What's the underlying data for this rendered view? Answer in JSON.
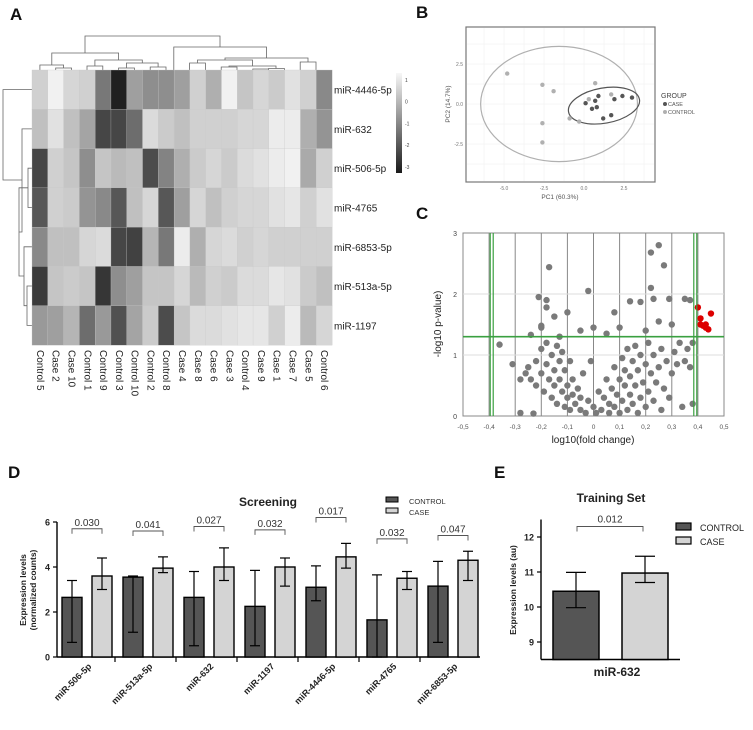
{
  "panels": {
    "a": "A",
    "b": "B",
    "c": "C",
    "d": "D",
    "e": "E"
  },
  "chart_data": [
    {
      "type": "heatmap",
      "rows": [
        "miR-4446-5p",
        "miR-632",
        "miR-506-5p",
        "miR-4765",
        "miR-6853-5p",
        "miR-513a-5p",
        "miR-1197"
      ],
      "columns": [
        "Control 5",
        "Case 2",
        "Case 10",
        "Control 1",
        "Control 9",
        "Control 3",
        "Control 10",
        "Control 2",
        "Control 8",
        "Case 4",
        "Case 8",
        "Case 6",
        "Case 3",
        "Control 4",
        "Case 9",
        "Case 1",
        "Case 7",
        "Case 5",
        "Control 6"
      ],
      "values": [
        [
          0.3,
          0.9,
          0.4,
          0.3,
          -1.3,
          -2.9,
          -0.6,
          -0.9,
          -0.9,
          -0.6,
          0.3,
          -0.3,
          0.9,
          0.1,
          0.4,
          0.2,
          0.6,
          0.3,
          -1.0
        ],
        [
          0.0,
          0.6,
          0.0,
          -0.5,
          -2.2,
          -2.2,
          -1.5,
          0.5,
          0.2,
          0.0,
          0.3,
          0.3,
          0.3,
          0.4,
          0.4,
          0.8,
          0.8,
          -0.3,
          -0.8
        ],
        [
          -2.2,
          0.3,
          0.1,
          -0.9,
          0.1,
          -0.1,
          0.0,
          -2.1,
          -1.1,
          -0.3,
          0.2,
          0.4,
          0.2,
          0.5,
          0.6,
          0.8,
          0.9,
          -0.4,
          0.3
        ],
        [
          -1.9,
          0.3,
          0.2,
          -0.8,
          -1.0,
          -1.9,
          0.0,
          0.4,
          -1.9,
          -0.6,
          0.4,
          0.0,
          0.3,
          0.4,
          0.4,
          0.6,
          0.7,
          0.3,
          0.6
        ],
        [
          -1.0,
          0.0,
          0.0,
          0.4,
          0.5,
          -2.2,
          -2.3,
          -0.2,
          -1.3,
          0.8,
          -0.3,
          0.4,
          0.5,
          0.3,
          0.4,
          0.3,
          0.3,
          0.3,
          0.3
        ],
        [
          -2.4,
          0.1,
          0.2,
          0.1,
          -2.5,
          -0.9,
          -0.6,
          0.1,
          0.1,
          0.4,
          -0.1,
          0.3,
          0.2,
          0.5,
          0.5,
          0.7,
          0.6,
          0.2,
          0.0
        ],
        [
          -0.7,
          -0.6,
          -0.2,
          -1.5,
          -0.7,
          -2.0,
          -0.5,
          0.2,
          -2.1,
          0.1,
          0.5,
          0.5,
          0.6,
          0.7,
          0.7,
          0.3,
          0.8,
          -0.1,
          0.4
        ]
      ],
      "colorbar": {
        "ticks": [
          "1",
          "0",
          "-1",
          "-2",
          "-3"
        ],
        "range": [
          -3,
          1
        ],
        "low_color": "#1a1a1a",
        "high_color": "#f7f7f7"
      }
    },
    {
      "type": "scatter",
      "xlabel": "PC1 (60.3%)",
      "ylabel": "PC2 (14.7%)",
      "xticks": [
        "-5.0",
        "-2.5",
        "0.0",
        "2.5"
      ],
      "xtick_values": [
        -5,
        -2.5,
        0,
        2.5
      ],
      "yticks": [
        "2.5",
        "0.0",
        "-2.5"
      ],
      "ytick_values": [
        2.5,
        0,
        -2.5
      ],
      "legend": {
        "title": "GROUP",
        "items": [
          "CASE",
          "CONTROL"
        ],
        "placement": "right"
      },
      "series": [
        {
          "name": "CASE",
          "color": "#555555",
          "points": [
            [
              0.1,
              0.05
            ],
            [
              0.5,
              -0.3
            ],
            [
              0.7,
              0.2
            ],
            [
              0.8,
              -0.2
            ],
            [
              0.9,
              0.5
            ],
            [
              1.2,
              -0.9
            ],
            [
              1.7,
              -0.7
            ],
            [
              1.9,
              0.3
            ],
            [
              2.4,
              0.5
            ],
            [
              3.0,
              0.4
            ]
          ]
        },
        {
          "name": "CONTROL",
          "color": "#b0b0b0",
          "points": [
            [
              -4.8,
              1.9
            ],
            [
              -2.6,
              1.2
            ],
            [
              -1.9,
              0.8
            ],
            [
              0.7,
              1.3
            ],
            [
              -2.6,
              -1.2
            ],
            [
              -2.6,
              -2.4
            ],
            [
              -0.9,
              -0.9
            ],
            [
              -0.3,
              -1.1
            ],
            [
              1.7,
              0.6
            ],
            [
              0.3,
              0.3
            ]
          ]
        }
      ],
      "ellipses": [
        {
          "group": "CONTROL",
          "color": "#b0b0b0",
          "center": [
            -1.56,
            0.0
          ],
          "radii": [
            4.9,
            3.6
          ],
          "angle": 0
        },
        {
          "group": "CASE",
          "color": "#555555",
          "center": [
            1.25,
            -0.1
          ],
          "radii": [
            2.25,
            1.1
          ],
          "angle": -10
        }
      ]
    },
    {
      "type": "scatter",
      "xlabel": "log10(fold change)",
      "ylabel": "-log10 p-value)",
      "xlim": [
        -0.5,
        0.5
      ],
      "ylim": [
        0,
        3
      ],
      "xticks": [
        "-0,5",
        "-0,4",
        "-0,3",
        "-0,2",
        "-0,1",
        "0",
        "0,1",
        "0,2",
        "0,3",
        "0,4",
        "0,5"
      ],
      "yticks": [
        "0",
        "1",
        "2",
        "3"
      ],
      "thresholds": {
        "fold_change": [
          -0.39,
          0.39
        ],
        "p_value": 1.3,
        "color": "#3aa040"
      },
      "significant_color": "#dd0000",
      "point_color": "#7a7a7a",
      "points": [
        [
          -0.36,
          1.17
        ],
        [
          -0.31,
          0.85
        ],
        [
          -0.17,
          2.44
        ],
        [
          -0.21,
          1.95
        ],
        [
          -0.18,
          1.9
        ],
        [
          -0.18,
          1.78
        ],
        [
          -0.02,
          2.05
        ],
        [
          0.22,
          2.68
        ],
        [
          0.25,
          2.8
        ],
        [
          0.27,
          2.47
        ],
        [
          0.22,
          2.1
        ],
        [
          0.14,
          1.88
        ],
        [
          0.29,
          1.92
        ],
        [
          0.35,
          1.92
        ],
        [
          0.37,
          1.9
        ],
        [
          0.18,
          1.87
        ],
        [
          0.23,
          1.92
        ],
        [
          -0.1,
          1.7
        ],
        [
          0.08,
          1.7
        ],
        [
          -0.15,
          1.63
        ],
        [
          -0.2,
          1.48
        ],
        [
          0.0,
          1.45
        ],
        [
          0.38,
          0.2
        ],
        [
          0.34,
          0.15
        ],
        [
          -0.28,
          0.05
        ],
        [
          -0.23,
          0.04
        ],
        [
          0.38,
          1.2
        ],
        [
          -0.24,
          1.33
        ],
        [
          -0.2,
          1.45
        ],
        [
          -0.05,
          1.4
        ],
        [
          0.1,
          1.45
        ],
        [
          0.2,
          1.4
        ],
        [
          0.25,
          1.55
        ],
        [
          0.3,
          1.5
        ],
        [
          0.05,
          1.35
        ],
        [
          -0.13,
          1.3
        ],
        [
          -0.28,
          0.6
        ],
        [
          -0.26,
          0.7
        ],
        [
          -0.25,
          0.8
        ],
        [
          -0.24,
          0.6
        ],
        [
          -0.22,
          0.9
        ],
        [
          -0.22,
          0.5
        ],
        [
          -0.2,
          1.1
        ],
        [
          -0.2,
          0.7
        ],
        [
          -0.19,
          0.4
        ],
        [
          -0.18,
          1.2
        ],
        [
          -0.18,
          0.85
        ],
        [
          -0.17,
          0.6
        ],
        [
          -0.16,
          0.3
        ],
        [
          -0.16,
          1.0
        ],
        [
          -0.15,
          0.75
        ],
        [
          -0.15,
          0.5
        ],
        [
          -0.14,
          1.15
        ],
        [
          -0.14,
          0.2
        ],
        [
          -0.13,
          0.9
        ],
        [
          -0.13,
          0.6
        ],
        [
          -0.12,
          0.4
        ],
        [
          -0.12,
          1.05
        ],
        [
          -0.11,
          0.75
        ],
        [
          -0.11,
          0.15
        ],
        [
          -0.1,
          0.5
        ],
        [
          -0.1,
          0.3
        ],
        [
          -0.09,
          0.9
        ],
        [
          -0.09,
          0.1
        ],
        [
          -0.08,
          0.6
        ],
        [
          -0.08,
          0.35
        ],
        [
          -0.07,
          0.2
        ],
        [
          -0.06,
          0.45
        ],
        [
          -0.05,
          0.1
        ],
        [
          -0.05,
          0.3
        ],
        [
          -0.04,
          0.7
        ],
        [
          -0.03,
          0.05
        ],
        [
          -0.02,
          0.25
        ],
        [
          -0.01,
          0.9
        ],
        [
          0.0,
          0.15
        ],
        [
          0.01,
          0.05
        ],
        [
          0.02,
          0.4
        ],
        [
          0.03,
          0.1
        ],
        [
          0.04,
          0.3
        ],
        [
          0.05,
          0.6
        ],
        [
          0.06,
          0.05
        ],
        [
          0.06,
          0.2
        ],
        [
          0.07,
          0.45
        ],
        [
          0.08,
          0.8
        ],
        [
          0.08,
          0.15
        ],
        [
          0.09,
          0.35
        ],
        [
          0.1,
          0.6
        ],
        [
          0.1,
          0.05
        ],
        [
          0.11,
          0.95
        ],
        [
          0.11,
          0.25
        ],
        [
          0.12,
          0.5
        ],
        [
          0.12,
          0.75
        ],
        [
          0.13,
          0.1
        ],
        [
          0.13,
          1.1
        ],
        [
          0.14,
          0.35
        ],
        [
          0.14,
          0.65
        ],
        [
          0.15,
          0.9
        ],
        [
          0.15,
          0.2
        ],
        [
          0.16,
          0.5
        ],
        [
          0.16,
          1.15
        ],
        [
          0.17,
          0.05
        ],
        [
          0.17,
          0.75
        ],
        [
          0.18,
          0.3
        ],
        [
          0.18,
          1.0
        ],
        [
          0.19,
          0.55
        ],
        [
          0.2,
          0.15
        ],
        [
          0.2,
          0.85
        ],
        [
          0.21,
          1.2
        ],
        [
          0.21,
          0.4
        ],
        [
          0.22,
          0.7
        ],
        [
          0.23,
          1.0
        ],
        [
          0.23,
          0.25
        ],
        [
          0.24,
          0.55
        ],
        [
          0.25,
          0.8
        ],
        [
          0.26,
          1.1
        ],
        [
          0.26,
          0.1
        ],
        [
          0.27,
          0.45
        ],
        [
          0.28,
          0.9
        ],
        [
          0.29,
          0.3
        ],
        [
          0.3,
          0.7
        ],
        [
          0.31,
          1.05
        ],
        [
          0.32,
          0.85
        ],
        [
          0.33,
          1.2
        ],
        [
          0.35,
          0.9
        ],
        [
          0.36,
          1.1
        ],
        [
          0.37,
          0.8
        ]
      ],
      "significant_points": [
        [
          0.4,
          1.78
        ],
        [
          0.41,
          1.6
        ],
        [
          0.41,
          1.5
        ],
        [
          0.42,
          1.48
        ],
        [
          0.43,
          1.5
        ],
        [
          0.44,
          1.42
        ],
        [
          0.45,
          1.68
        ],
        [
          0.43,
          1.45
        ]
      ]
    },
    {
      "type": "bar",
      "title": "Screening",
      "ylabel_line1": "Expression levels",
      "ylabel_line2": "(normalized counts)",
      "ylim": [
        0,
        6
      ],
      "yticks": [
        "0",
        "2",
        "4",
        "6"
      ],
      "ytick_values": [
        0,
        2,
        4,
        6
      ],
      "categories": [
        "miR-506-5p",
        "miR-513a-5p",
        "miR-632",
        "miR-1197",
        "miR-4446-5p",
        "miR-4765",
        "miR-6853-5p"
      ],
      "legend": {
        "items": [
          "CONTROL",
          "CASE"
        ],
        "placement": "top-right"
      },
      "series": [
        {
          "name": "CONTROL",
          "color": "#555555",
          "values": [
            2.65,
            3.55,
            2.65,
            2.25,
            3.1,
            1.65,
            3.15
          ],
          "err_low": [
            0.65,
            1.1,
            0.5,
            0.5,
            2.5,
            0.0,
            0.65
          ],
          "err_high": [
            3.4,
            3.6,
            3.8,
            3.85,
            4.05,
            3.65,
            4.25
          ]
        },
        {
          "name": "CASE",
          "color": "#d4d4d4",
          "values": [
            3.6,
            3.95,
            4.0,
            4.0,
            4.45,
            3.5,
            4.3
          ],
          "err_low": [
            3.0,
            3.75,
            3.4,
            3.15,
            3.95,
            3.0,
            3.4
          ],
          "err_high": [
            4.4,
            4.45,
            4.85,
            4.4,
            5.05,
            3.8,
            4.7
          ]
        }
      ],
      "p_values": [
        "0.030",
        "0.041",
        "0.027",
        "0.032",
        "0.017",
        "0.032",
        "0.047"
      ],
      "bracket_levels": [
        5.7,
        5.6,
        5.8,
        5.65,
        6.2,
        5.25,
        5.4
      ]
    },
    {
      "type": "bar",
      "title": "Training Set",
      "ylabel": "Expression levels (au)",
      "xlabel": "miR-632",
      "ylim": [
        8.5,
        12.5
      ],
      "yticks": [
        "9",
        "10",
        "11",
        "12"
      ],
      "ytick_values": [
        9,
        10,
        11,
        12
      ],
      "legend": {
        "items": [
          "CONTROL",
          "CASE"
        ],
        "placement": "top-right"
      },
      "series": [
        {
          "name": "CONTROL",
          "color": "#555555",
          "value": 10.45,
          "err_low": 9.98,
          "err_high": 10.99
        },
        {
          "name": "CASE",
          "color": "#d4d4d4",
          "value": 10.97,
          "err_low": 10.7,
          "err_high": 11.45
        }
      ],
      "p_value": "0.012",
      "bracket_level": 12.3
    }
  ]
}
